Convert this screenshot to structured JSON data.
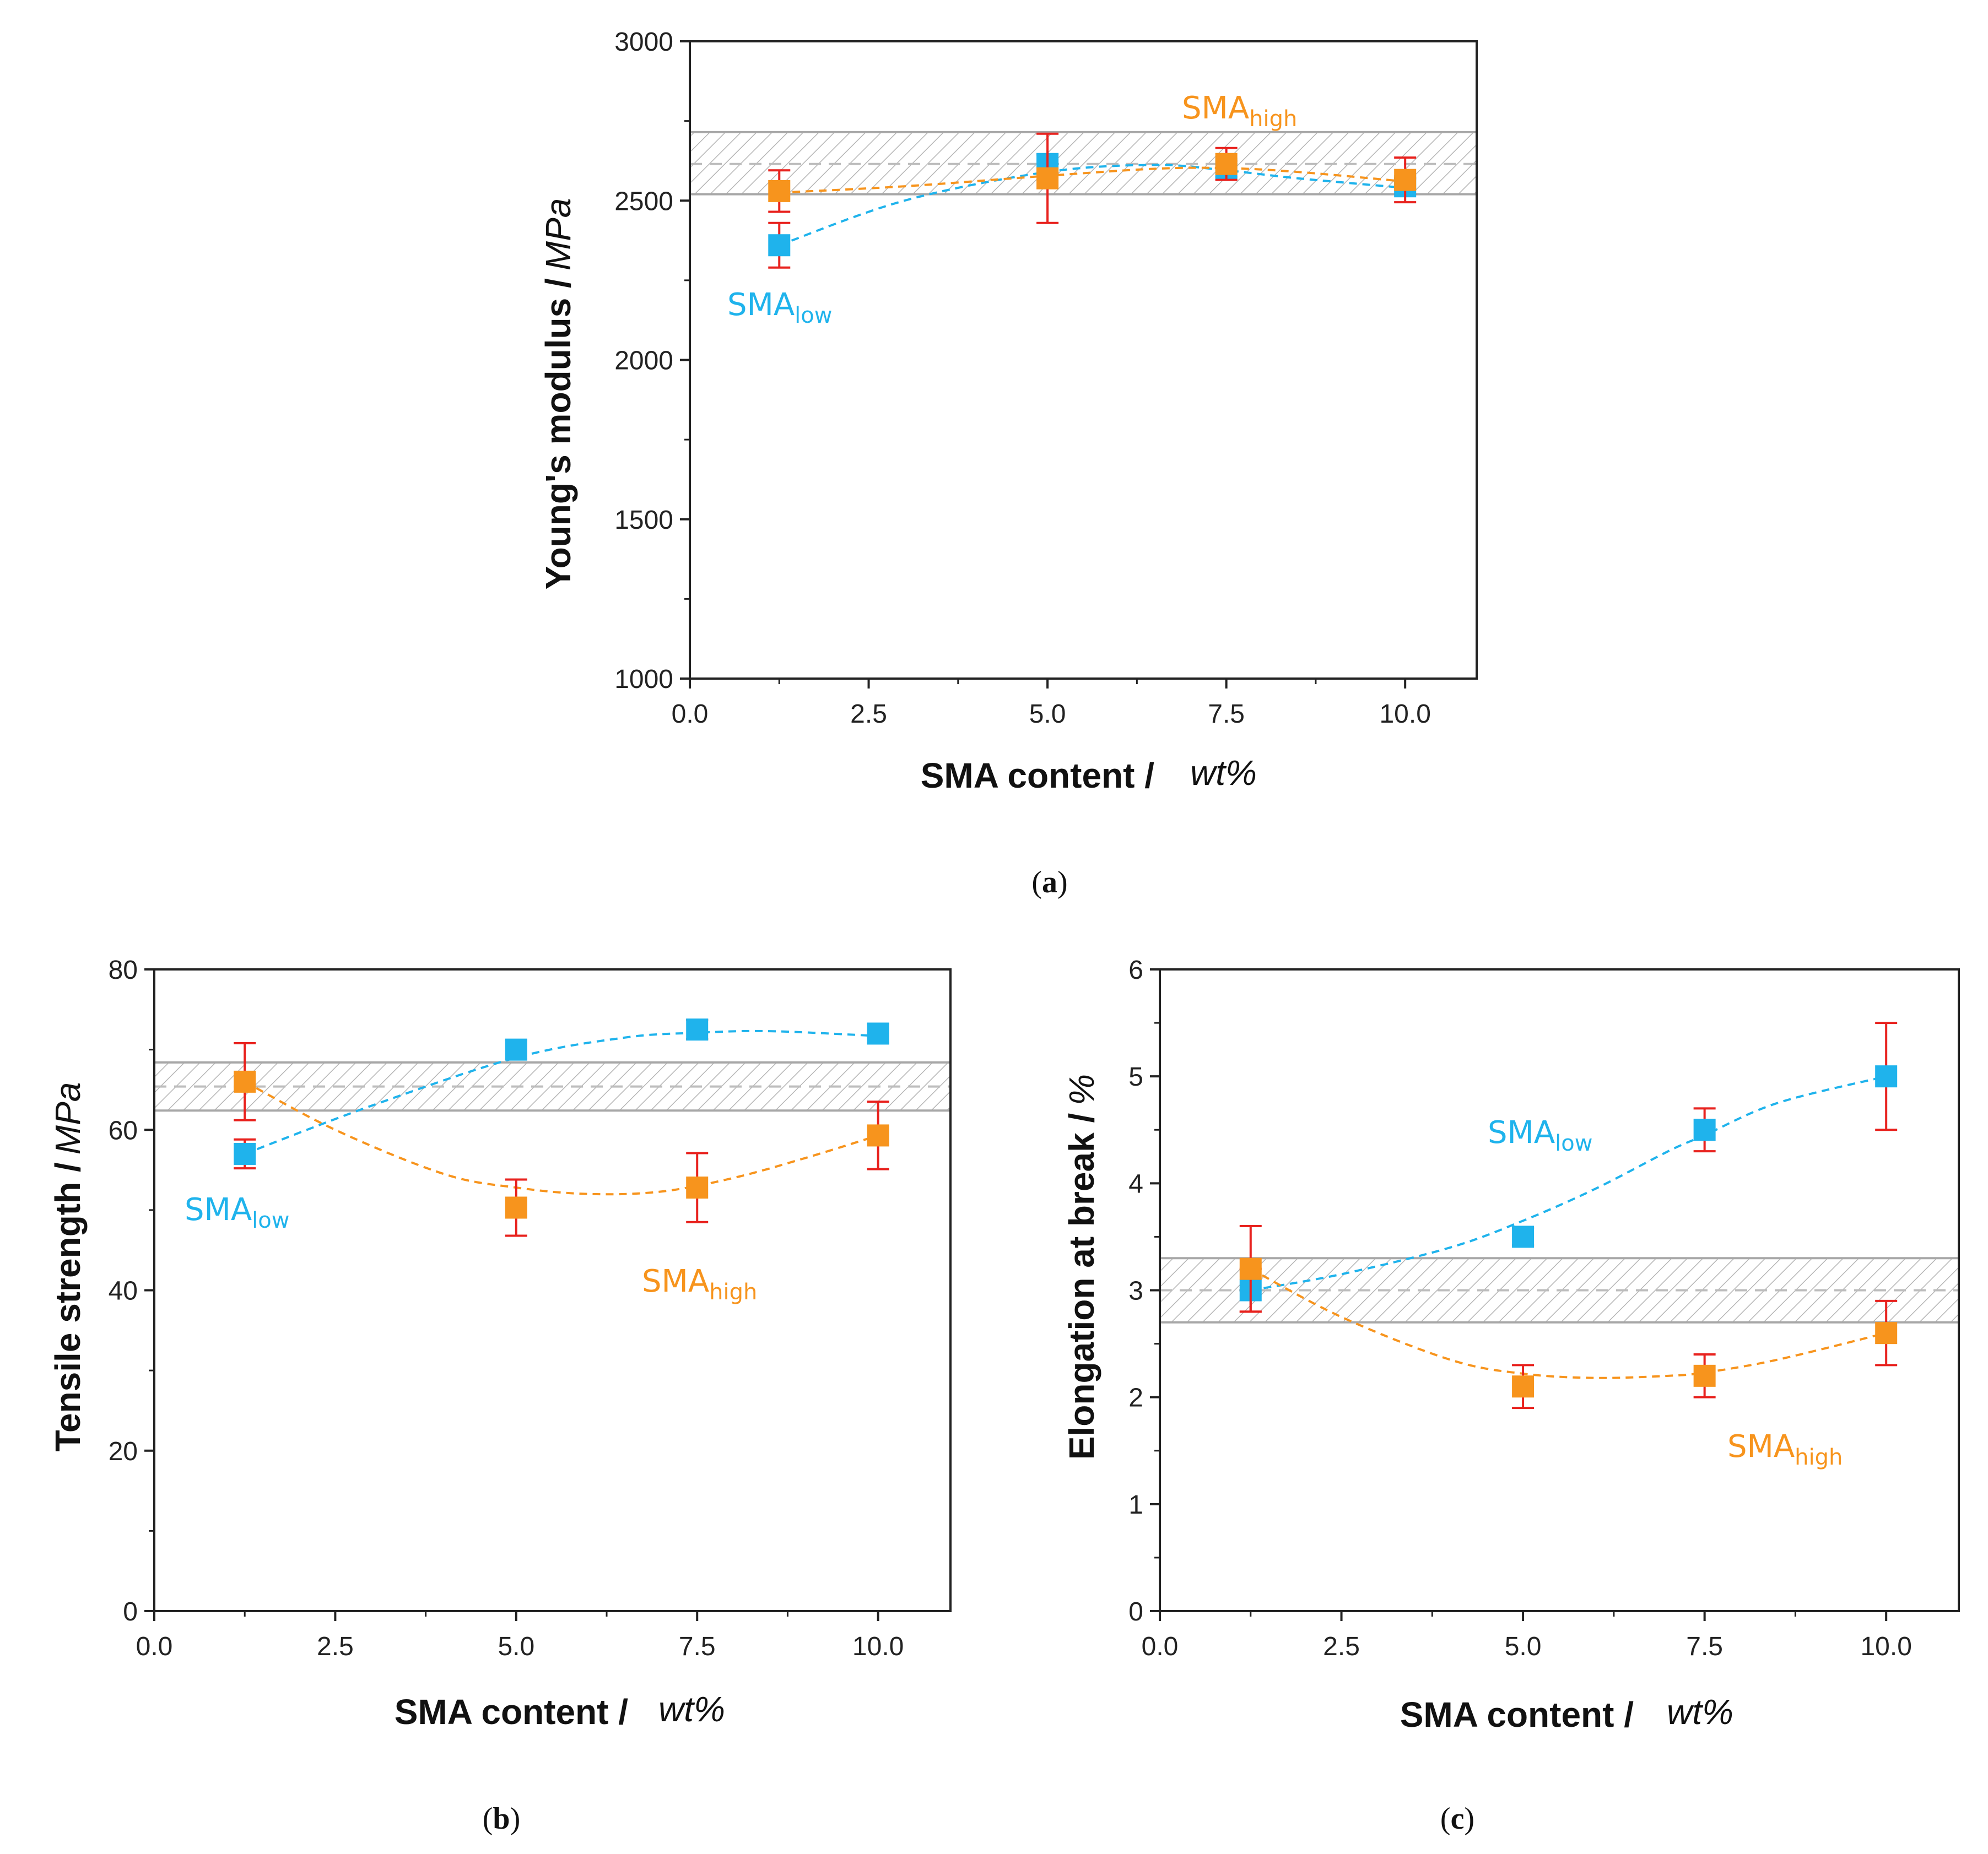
{
  "chart_data": [
    {
      "id": "a",
      "type": "scatter",
      "caption": "a",
      "xlabel": "SMA content /",
      "xunit": "wt%",
      "ylabel": "Young's modulus /",
      "yunit": "MPa",
      "xlim": [
        0,
        11
      ],
      "ylim": [
        1000,
        3000
      ],
      "xticks": [
        "0.0",
        "2.5",
        "5.0",
        "7.5",
        "10.0"
      ],
      "yticks": [
        "1000",
        "1500",
        "2000",
        "2500",
        "3000"
      ],
      "band": {
        "low": 2520,
        "center": 2615,
        "high": 2715
      },
      "series": [
        {
          "name": "SMA",
          "sub": "low",
          "color": "#1fb3ec",
          "x": [
            1.25,
            5.0,
            7.5,
            10.0
          ],
          "y": [
            2360,
            2615,
            2600,
            2545
          ],
          "err": [
            70,
            30,
            25,
            25
          ],
          "fit": [
            [
              1.25,
              2360
            ],
            [
              3.0,
              2500
            ],
            [
              5.0,
              2590
            ],
            [
              6.5,
              2612
            ],
            [
              7.5,
              2595
            ],
            [
              8.5,
              2570
            ],
            [
              10.0,
              2540
            ]
          ]
        },
        {
          "name": "SMA",
          "sub": "high",
          "color": "#f7941d",
          "x": [
            1.25,
            5.0,
            7.5,
            10.0
          ],
          "y": [
            2530,
            2570,
            2615,
            2565
          ],
          "err": [
            65,
            140,
            50,
            70
          ],
          "fit": [
            [
              1.25,
              2525
            ],
            [
              3.0,
              2545
            ],
            [
              5.0,
              2578
            ],
            [
              6.5,
              2600
            ],
            [
              7.5,
              2602
            ],
            [
              8.5,
              2590
            ],
            [
              10.0,
              2560
            ]
          ]
        }
      ]
    },
    {
      "id": "b",
      "type": "scatter",
      "caption": "b",
      "xlabel": "SMA content /",
      "xunit": "wt%",
      "ylabel": "Tensile strength /",
      "yunit": "MPa",
      "xlim": [
        0,
        11
      ],
      "ylim": [
        0,
        80
      ],
      "xticks": [
        "0.0",
        "2.5",
        "5.0",
        "7.5",
        "10.0"
      ],
      "yticks": [
        "0",
        "20",
        "40",
        "60",
        "80"
      ],
      "band": {
        "low": 62.4,
        "center": 65.4,
        "high": 68.4
      },
      "series": [
        {
          "name": "SMA",
          "sub": "low",
          "color": "#1fb3ec",
          "x": [
            1.25,
            5.0,
            7.5,
            10.0
          ],
          "y": [
            57.0,
            70.0,
            72.5,
            72.0
          ],
          "err": [
            1.8,
            1.2,
            1.2,
            1.2
          ],
          "fit": [
            [
              1.25,
              57.0
            ],
            [
              3.0,
              63.0
            ],
            [
              5.0,
              69.0
            ],
            [
              6.5,
              71.5
            ],
            [
              7.5,
              72.1
            ],
            [
              8.5,
              72.3
            ],
            [
              10.0,
              71.7
            ]
          ]
        },
        {
          "name": "SMA",
          "sub": "high",
          "color": "#f7941d",
          "x": [
            1.25,
            5.0,
            7.5,
            10.0
          ],
          "y": [
            66.0,
            50.3,
            52.8,
            59.3
          ],
          "err": [
            4.8,
            3.5,
            4.3,
            4.2
          ],
          "fit": [
            [
              1.25,
              66.0
            ],
            [
              2.5,
              60.0
            ],
            [
              4.0,
              54.5
            ],
            [
              5.0,
              52.8
            ],
            [
              6.0,
              52.0
            ],
            [
              7.0,
              52.3
            ],
            [
              8.0,
              54.0
            ],
            [
              9.0,
              56.5
            ],
            [
              10.0,
              59.3
            ]
          ]
        }
      ]
    },
    {
      "id": "c",
      "type": "scatter",
      "caption": "c",
      "xlabel": "SMA content /",
      "xunit": "wt%",
      "ylabel": "Elongation at break /",
      "yunit": "%",
      "xlim": [
        0,
        11
      ],
      "ylim": [
        0,
        6
      ],
      "xticks": [
        "0.0",
        "2.5",
        "5.0",
        "7.5",
        "10.0"
      ],
      "yticks": [
        "0",
        "1",
        "2",
        "3",
        "4",
        "5",
        "6"
      ],
      "band": {
        "low": 2.7,
        "center": 3.0,
        "high": 3.3
      },
      "series": [
        {
          "name": "SMA",
          "sub": "low",
          "color": "#1fb3ec",
          "x": [
            1.25,
            5.0,
            7.5,
            10.0
          ],
          "y": [
            3.0,
            3.5,
            4.5,
            5.0
          ],
          "err": [
            0.2,
            0.08,
            0.2,
            0.5
          ],
          "fit": [
            [
              1.25,
              3.0
            ],
            [
              2.5,
              3.15
            ],
            [
              4.0,
              3.4
            ],
            [
              5.0,
              3.65
            ],
            [
              6.0,
              3.95
            ],
            [
              7.0,
              4.3
            ],
            [
              7.5,
              4.45
            ],
            [
              8.5,
              4.75
            ],
            [
              10.0,
              5.0
            ]
          ]
        },
        {
          "name": "SMA",
          "sub": "high",
          "color": "#f7941d",
          "x": [
            1.25,
            5.0,
            7.5,
            10.0
          ],
          "y": [
            3.2,
            2.1,
            2.2,
            2.6
          ],
          "err": [
            0.4,
            0.2,
            0.2,
            0.3
          ],
          "fit": [
            [
              1.25,
              3.2
            ],
            [
              2.5,
              2.75
            ],
            [
              4.0,
              2.35
            ],
            [
              5.0,
              2.22
            ],
            [
              6.0,
              2.18
            ],
            [
              7.0,
              2.2
            ],
            [
              7.5,
              2.23
            ],
            [
              8.5,
              2.35
            ],
            [
              10.0,
              2.6
            ]
          ]
        }
      ]
    }
  ]
}
